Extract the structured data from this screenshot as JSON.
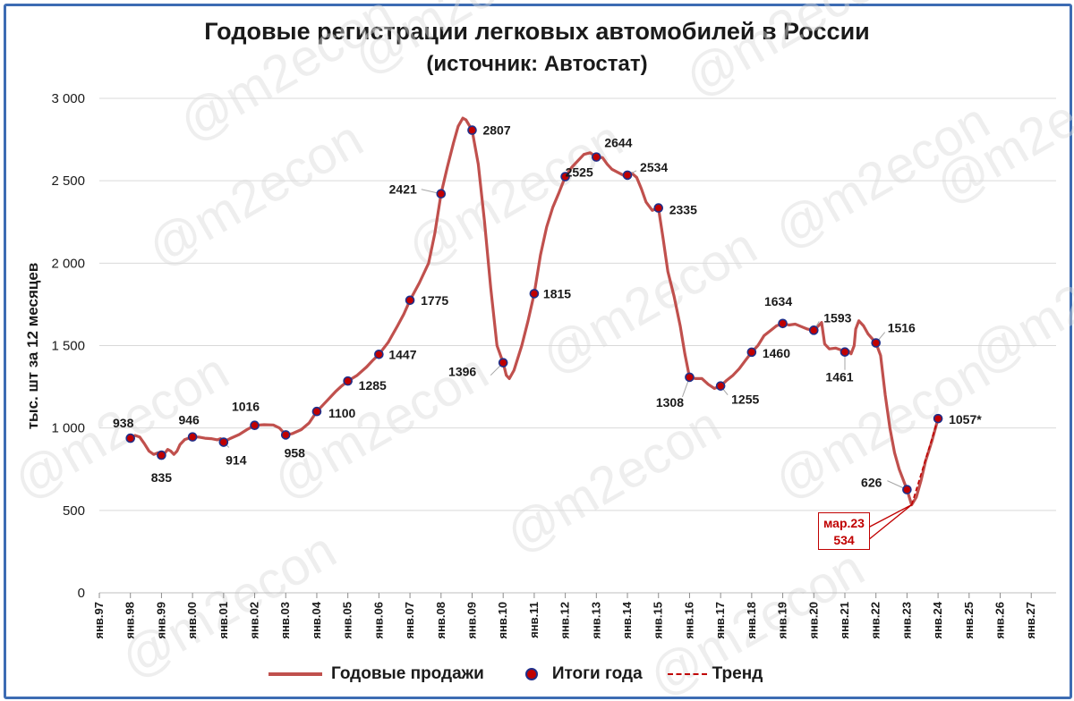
{
  "chart_data": {
    "type": "line",
    "title": "Годовые регистрации легковых автомобилей в России",
    "subtitle": "(источник: Автостат)",
    "ylabel": "тыс. шт за 12 месяцев",
    "xlabel": "",
    "ylim": [
      0,
      3000
    ],
    "y_ticks": [
      "0",
      "500",
      "1 000",
      "1 500",
      "2 000",
      "2 500",
      "3 000"
    ],
    "x_ticks": [
      "янв.97",
      "янв.98",
      "янв.99",
      "янв.00",
      "янв.01",
      "янв.02",
      "янв.03",
      "янв.04",
      "янв.05",
      "янв.06",
      "янв.07",
      "янв.08",
      "янв.09",
      "янв.10",
      "янв.11",
      "янв.12",
      "янв.13",
      "янв.14",
      "янв.15",
      "янв.16",
      "янв.17",
      "янв.18",
      "янв.19",
      "янв.20",
      "янв.21",
      "янв.22",
      "янв.23",
      "янв.24",
      "янв.25",
      "янв.26",
      "янв.27"
    ],
    "grid": true,
    "legend_position": "bottom",
    "legend": [
      "Годовые продажи",
      "Итоги года",
      "Тренд"
    ],
    "series": [
      {
        "name": "Годовые продажи",
        "color": "#c0504d",
        "points": [
          [
            1997.9,
            940
          ],
          [
            1998.0,
            938
          ],
          [
            1998.15,
            955
          ],
          [
            1998.3,
            945
          ],
          [
            1998.45,
            905
          ],
          [
            1998.6,
            860
          ],
          [
            1998.75,
            840
          ],
          [
            1998.9,
            850
          ],
          [
            1999.0,
            835
          ],
          [
            1999.1,
            845
          ],
          [
            1999.2,
            870
          ],
          [
            1999.3,
            860
          ],
          [
            1999.4,
            840
          ],
          [
            1999.5,
            860
          ],
          [
            1999.6,
            900
          ],
          [
            1999.75,
            930
          ],
          [
            1999.9,
            940
          ],
          [
            2000.0,
            946
          ],
          [
            2000.2,
            945
          ],
          [
            2000.4,
            938
          ],
          [
            2000.6,
            935
          ],
          [
            2000.8,
            928
          ],
          [
            2000.9,
            935
          ],
          [
            2001.0,
            914
          ],
          [
            2001.2,
            935
          ],
          [
            2001.5,
            960
          ],
          [
            2001.75,
            990
          ],
          [
            2002.0,
            1016
          ],
          [
            2002.3,
            1020
          ],
          [
            2002.6,
            1018
          ],
          [
            2002.8,
            1000
          ],
          [
            2003.0,
            958
          ],
          [
            2003.2,
            965
          ],
          [
            2003.5,
            990
          ],
          [
            2003.75,
            1030
          ],
          [
            2004.0,
            1100
          ],
          [
            2004.3,
            1160
          ],
          [
            2004.6,
            1220
          ],
          [
            2004.8,
            1255
          ],
          [
            2005.0,
            1285
          ],
          [
            2005.3,
            1320
          ],
          [
            2005.6,
            1370
          ],
          [
            2005.8,
            1410
          ],
          [
            2006.0,
            1447
          ],
          [
            2006.3,
            1520
          ],
          [
            2006.6,
            1620
          ],
          [
            2006.8,
            1690
          ],
          [
            2007.0,
            1775
          ],
          [
            2007.3,
            1880
          ],
          [
            2007.6,
            2000
          ],
          [
            2007.8,
            2180
          ],
          [
            2008.0,
            2421
          ],
          [
            2008.2,
            2580
          ],
          [
            2008.4,
            2730
          ],
          [
            2008.55,
            2830
          ],
          [
            2008.7,
            2880
          ],
          [
            2008.8,
            2870
          ],
          [
            2009.0,
            2807
          ],
          [
            2009.2,
            2600
          ],
          [
            2009.4,
            2250
          ],
          [
            2009.6,
            1850
          ],
          [
            2009.8,
            1500
          ],
          [
            2010.0,
            1396
          ],
          [
            2010.1,
            1320
          ],
          [
            2010.2,
            1300
          ],
          [
            2010.35,
            1350
          ],
          [
            2010.6,
            1500
          ],
          [
            2010.8,
            1650
          ],
          [
            2011.0,
            1815
          ],
          [
            2011.2,
            2050
          ],
          [
            2011.4,
            2220
          ],
          [
            2011.6,
            2340
          ],
          [
            2011.8,
            2430
          ],
          [
            2012.0,
            2525
          ],
          [
            2012.2,
            2580
          ],
          [
            2012.4,
            2620
          ],
          [
            2012.6,
            2660
          ],
          [
            2012.8,
            2670
          ],
          [
            2013.0,
            2644
          ],
          [
            2013.2,
            2640
          ],
          [
            2013.35,
            2600
          ],
          [
            2013.5,
            2570
          ],
          [
            2013.7,
            2550
          ],
          [
            2013.9,
            2530
          ],
          [
            2014.0,
            2534
          ],
          [
            2014.15,
            2545
          ],
          [
            2014.3,
            2520
          ],
          [
            2014.45,
            2450
          ],
          [
            2014.6,
            2370
          ],
          [
            2014.8,
            2320
          ],
          [
            2015.0,
            2335
          ],
          [
            2015.15,
            2150
          ],
          [
            2015.3,
            1950
          ],
          [
            2015.5,
            1800
          ],
          [
            2015.7,
            1620
          ],
          [
            2015.85,
            1450
          ],
          [
            2016.0,
            1308
          ],
          [
            2016.2,
            1300
          ],
          [
            2016.4,
            1300
          ],
          [
            2016.6,
            1265
          ],
          [
            2016.8,
            1240
          ],
          [
            2017.0,
            1255
          ],
          [
            2017.2,
            1290
          ],
          [
            2017.4,
            1320
          ],
          [
            2017.6,
            1360
          ],
          [
            2017.8,
            1410
          ],
          [
            2018.0,
            1460
          ],
          [
            2018.2,
            1500
          ],
          [
            2018.4,
            1560
          ],
          [
            2018.6,
            1590
          ],
          [
            2018.8,
            1620
          ],
          [
            2019.0,
            1634
          ],
          [
            2019.2,
            1625
          ],
          [
            2019.4,
            1630
          ],
          [
            2019.6,
            1615
          ],
          [
            2019.8,
            1600
          ],
          [
            2020.0,
            1593
          ],
          [
            2020.15,
            1620
          ],
          [
            2020.25,
            1640
          ],
          [
            2020.35,
            1510
          ],
          [
            2020.5,
            1480
          ],
          [
            2020.7,
            1485
          ],
          [
            2020.85,
            1475
          ],
          [
            2021.0,
            1461
          ],
          [
            2021.1,
            1470
          ],
          [
            2021.2,
            1450
          ],
          [
            2021.3,
            1500
          ],
          [
            2021.35,
            1600
          ],
          [
            2021.45,
            1650
          ],
          [
            2021.6,
            1620
          ],
          [
            2021.75,
            1570
          ],
          [
            2022.0,
            1516
          ],
          [
            2022.15,
            1440
          ],
          [
            2022.3,
            1200
          ],
          [
            2022.45,
            1000
          ],
          [
            2022.6,
            850
          ],
          [
            2022.75,
            750
          ],
          [
            2023.0,
            626
          ],
          [
            2023.15,
            534
          ],
          [
            2023.3,
            580
          ],
          [
            2023.45,
            680
          ],
          [
            2023.6,
            800
          ],
          [
            2023.8,
            920
          ],
          [
            2024.0,
            1057
          ]
        ]
      },
      {
        "name": "Итоги года",
        "color": "#c00000",
        "points": [
          [
            1998,
            938
          ],
          [
            1999,
            835
          ],
          [
            2000,
            946
          ],
          [
            2001,
            914
          ],
          [
            2002,
            1016
          ],
          [
            2003,
            958
          ],
          [
            2004,
            1100
          ],
          [
            2005,
            1285
          ],
          [
            2006,
            1447
          ],
          [
            2007,
            1775
          ],
          [
            2008,
            2421
          ],
          [
            2009,
            2807
          ],
          [
            2010,
            1396
          ],
          [
            2011,
            1815
          ],
          [
            2012,
            2525
          ],
          [
            2013,
            2644
          ],
          [
            2014,
            2534
          ],
          [
            2015,
            2335
          ],
          [
            2016,
            1308
          ],
          [
            2017,
            1255
          ],
          [
            2018,
            1460
          ],
          [
            2019,
            1634
          ],
          [
            2020,
            1593
          ],
          [
            2021,
            1461
          ],
          [
            2022,
            1516
          ],
          [
            2023,
            626
          ],
          [
            2024,
            1057
          ]
        ],
        "labels": [
          "938",
          "835",
          "946",
          "914",
          "1016",
          "958",
          "1100",
          "1285",
          "1447",
          "1775",
          "2421",
          "2807",
          "1396",
          "1815",
          "2525",
          "2644",
          "2534",
          "2335",
          "1308",
          "1255",
          "1460",
          "1634",
          "1593",
          "1461",
          "1516",
          "626",
          "1057*"
        ]
      },
      {
        "name": "Тренд",
        "color": "#c00000",
        "style": "dashed",
        "points": [
          [
            2023.15,
            534
          ],
          [
            2024.0,
            1057
          ]
        ]
      }
    ],
    "annotation": {
      "line1": "мар.23",
      "line2": "534",
      "x": 2023.15,
      "y": 534
    },
    "watermark": "@m2econ"
  }
}
